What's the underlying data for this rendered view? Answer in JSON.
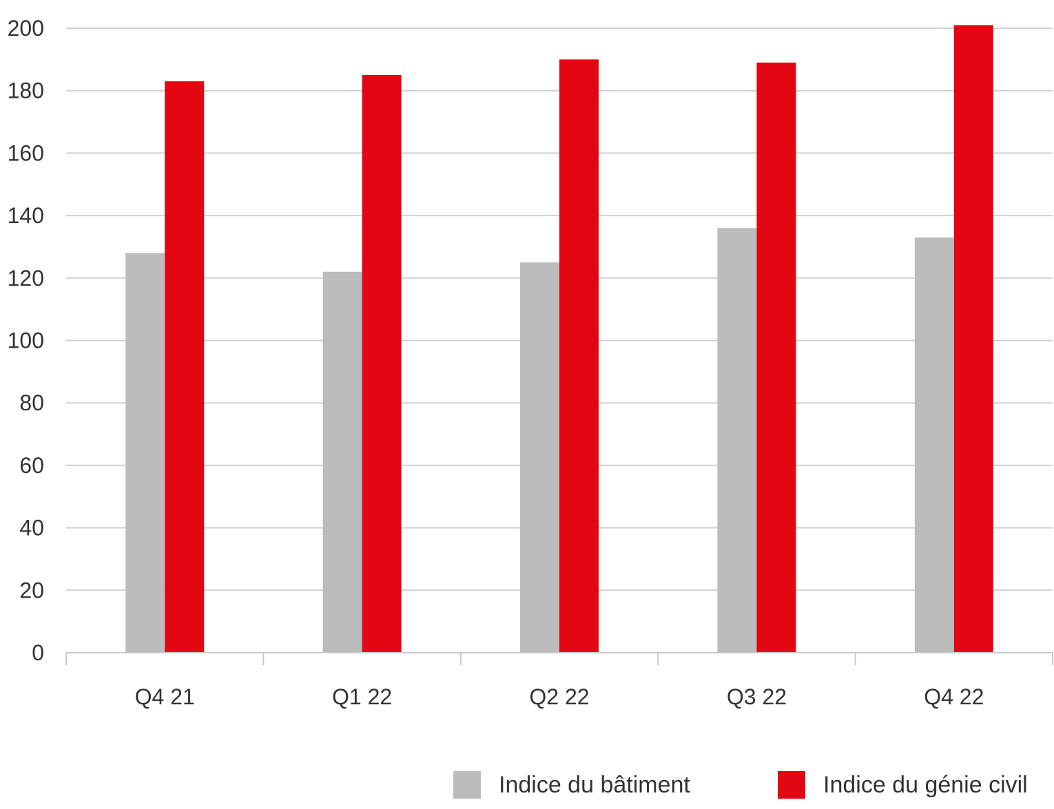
{
  "chart_data": {
    "type": "bar",
    "title": "",
    "xlabel": "",
    "ylabel": "",
    "categories": [
      "Q4 21",
      "Q1 22",
      "Q2 22",
      "Q3 22",
      "Q4 22"
    ],
    "series": [
      {
        "name": "Indice du bâtiment",
        "color": "#bcbcbc",
        "values": [
          128,
          122,
          125,
          136,
          133
        ]
      },
      {
        "name": "Indice du génie civil",
        "color": "#e30613",
        "values": [
          183,
          185,
          190,
          189,
          201
        ]
      }
    ],
    "ylim": [
      0,
      200
    ],
    "yticks": [
      0,
      20,
      40,
      60,
      80,
      100,
      120,
      140,
      160,
      180,
      200
    ],
    "grid": true,
    "legend_position": "bottom-right"
  }
}
